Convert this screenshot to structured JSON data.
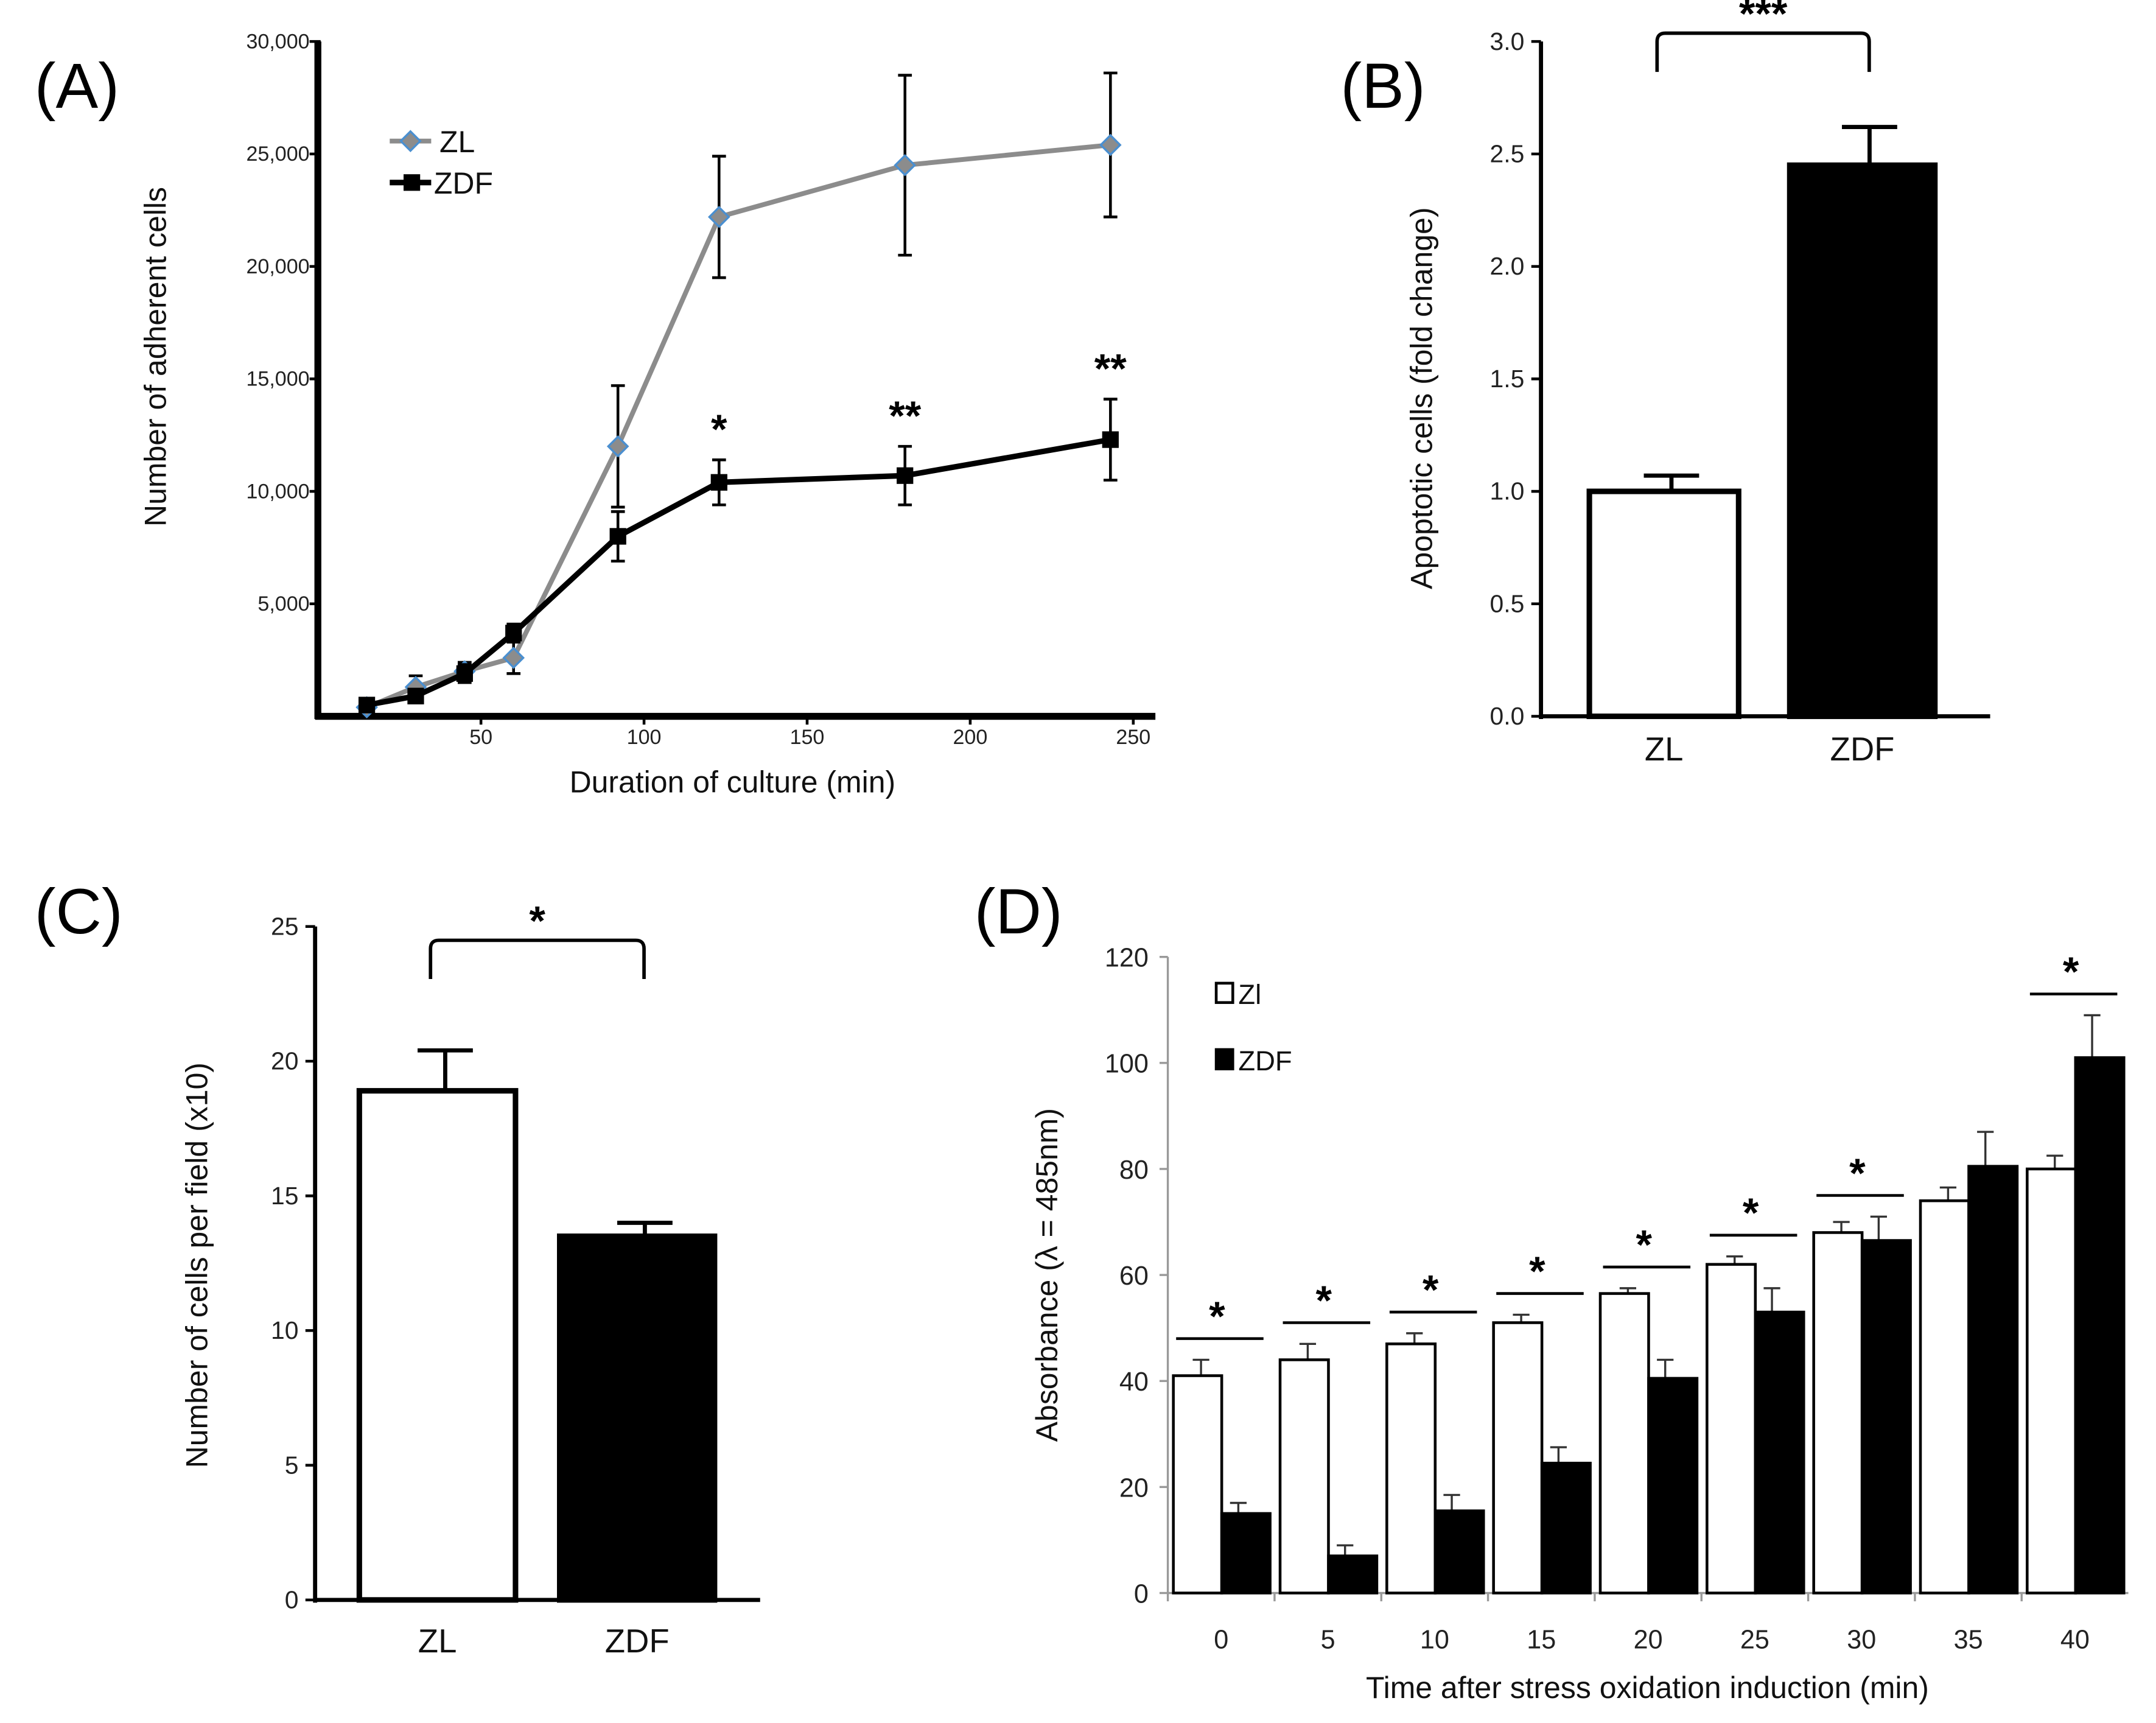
{
  "chart_data": [
    {
      "panel": "(A)",
      "type": "line",
      "xlabel": "Duration of culture (min)",
      "ylabel": "Number of adherent cells",
      "xlim": [
        0,
        250
      ],
      "ylim": [
        0,
        30000
      ],
      "xticks": [
        50,
        100,
        150,
        200,
        250
      ],
      "yticks": [
        5000,
        10000,
        15000,
        20000,
        25000,
        30000
      ],
      "ytick_labels": [
        "5,000",
        "10,000",
        "15,000",
        "20,000",
        "25,000",
        "30,000"
      ],
      "legend": "top-left",
      "series": [
        {
          "name": "ZL",
          "color": "#8c8c8c",
          "marker_color": "#4a8fd0",
          "marker": "diamond",
          "x": [
            15,
            30,
            45,
            60,
            92,
            123,
            180,
            243
          ],
          "y": [
            400,
            1300,
            2000,
            2600,
            12000,
            22200,
            24500,
            25400
          ],
          "err": [
            300,
            500,
            400,
            700,
            2700,
            2700,
            4000,
            3200
          ]
        },
        {
          "name": "ZDF",
          "color": "#000000",
          "marker": "square",
          "x": [
            15,
            30,
            45,
            60,
            92,
            123,
            180,
            243
          ],
          "y": [
            500,
            900,
            1900,
            3700,
            8000,
            10400,
            10700,
            12300
          ],
          "err": [
            300,
            300,
            400,
            400,
            1100,
            1000,
            1300,
            1800
          ]
        }
      ],
      "annotations": [
        {
          "x": 123,
          "text": "*"
        },
        {
          "x": 180,
          "text": "**"
        },
        {
          "x": 243,
          "text": "**"
        }
      ]
    },
    {
      "panel": "(B)",
      "type": "bar",
      "ylabel": "Apoptotic cells (fold change)",
      "categories": [
        "ZL",
        "ZDF"
      ],
      "values": [
        1.0,
        2.45
      ],
      "err": [
        0.07,
        0.17
      ],
      "fills": [
        "#ffffff",
        "#000000"
      ],
      "ylim": [
        0,
        3.0
      ],
      "yticks": [
        "0.0",
        "0.5",
        "1.0",
        "1.5",
        "2.0",
        "2.5",
        "3.0"
      ],
      "significance": "***"
    },
    {
      "panel": "(C)",
      "type": "bar",
      "ylabel": "Number of cells per field (x10)",
      "categories": [
        "ZL",
        "ZDF"
      ],
      "values": [
        18.9,
        13.5
      ],
      "err": [
        1.5,
        0.5
      ],
      "fills": [
        "#ffffff",
        "#000000"
      ],
      "ylim": [
        0,
        25
      ],
      "yticks": [
        "0",
        "5",
        "10",
        "15",
        "20",
        "25"
      ],
      "significance": "*"
    },
    {
      "panel": "(D)",
      "type": "bar",
      "xlabel": "Time after stress oxidation induction (min)",
      "ylabel": "Absorbance (λ = 485nm)",
      "categories": [
        "0",
        "5",
        "10",
        "15",
        "20",
        "25",
        "30",
        "35",
        "40"
      ],
      "ylim": [
        0,
        120
      ],
      "yticks": [
        "0",
        "20",
        "40",
        "60",
        "80",
        "100",
        "120"
      ],
      "legend": "top-left",
      "series": [
        {
          "name": "Zl",
          "fill": "#ffffff",
          "values": [
            41,
            44,
            47,
            51,
            56.5,
            62,
            68,
            74,
            80
          ],
          "err": [
            3,
            3,
            2,
            1.5,
            1,
            1.5,
            2,
            2.5,
            2.5
          ]
        },
        {
          "name": "ZDF",
          "fill": "#000000",
          "values": [
            15,
            7,
            15.5,
            24.5,
            40.5,
            53,
            66.5,
            80.5,
            101
          ],
          "err": [
            2,
            2,
            3,
            3,
            3.5,
            4.5,
            4.5,
            6.5,
            8
          ]
        }
      ],
      "significance": [
        "*",
        "*",
        "*",
        "*",
        "*",
        "*",
        "*",
        "",
        "*"
      ]
    }
  ]
}
